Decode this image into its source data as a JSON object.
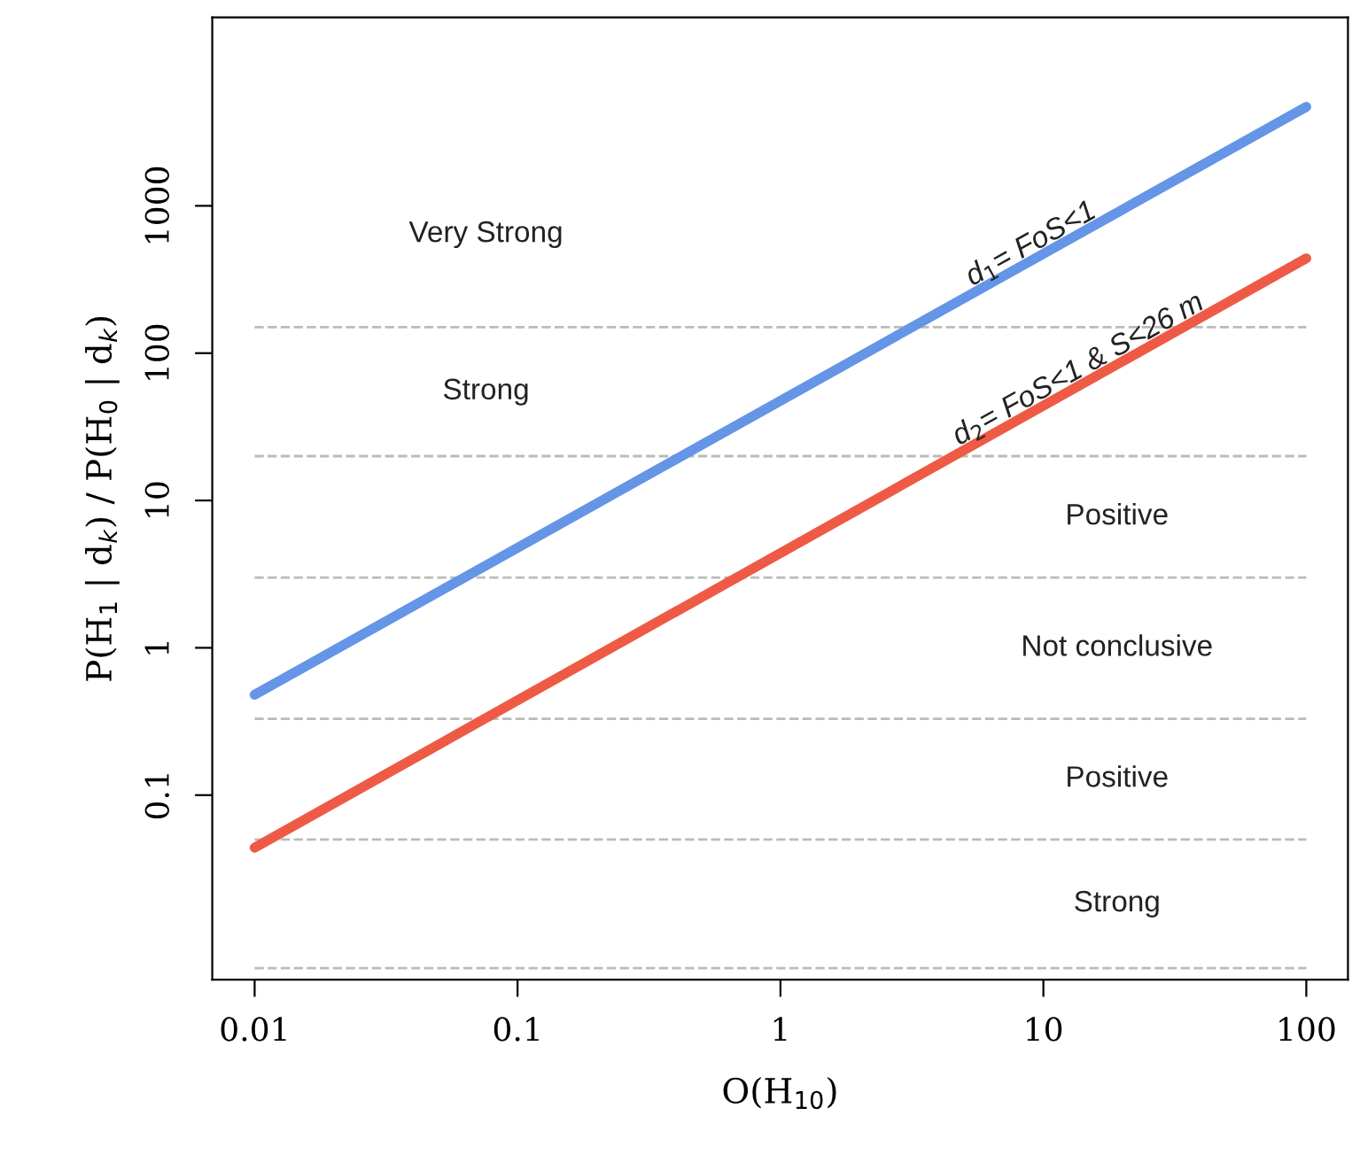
{
  "chart_data": {
    "type": "line",
    "xlabel": "O(H$_{10}$)",
    "ylabel": "P(H$_{1}$ | d$_{k}$) / P(H$_{0}$ | d$_{k}$)",
    "log": "xy",
    "x": [
      0.01,
      100
    ],
    "series": [
      {
        "name": "d$_{1}$= FoS<1",
        "color": "#6495e6",
        "values": [
          0.48,
          4700
        ]
      },
      {
        "name": "d$_{2}$= FoS<1 & S<26 m",
        "color": "#ee5a45",
        "values": [
          0.044,
          440
        ]
      }
    ],
    "xlim": [
      0.0069,
      144
    ],
    "ylim": [
      0.0056,
      19000
    ],
    "xticks": [
      0.01,
      0.1,
      1,
      10,
      100
    ],
    "yticks": [
      0.1,
      1,
      10,
      100,
      1000
    ],
    "grid": false,
    "legend": false,
    "line_style": "solid",
    "marker": "none",
    "ref_lines": [
      {
        "axis": "y",
        "value": 150,
        "color": "#bbbbbb",
        "line_style": "dashed"
      },
      {
        "axis": "y",
        "value": 20,
        "color": "#bbbbbb",
        "line_style": "dashed"
      },
      {
        "axis": "y",
        "value": 3,
        "color": "#bbbbbb",
        "line_style": "dashed"
      },
      {
        "axis": "y",
        "value": 0.33,
        "color": "#bbbbbb",
        "line_style": "dashed"
      },
      {
        "axis": "y",
        "value": 0.05,
        "color": "#bbbbbb",
        "line_style": "dashed"
      },
      {
        "axis": "y",
        "value": 0.0067,
        "color": "#bbbbbb",
        "line_style": "dashed"
      }
    ],
    "annotations": [
      "Very Strong",
      "Strong",
      "Positive",
      "Not conclusive",
      "Positive",
      "Strong"
    ]
  }
}
